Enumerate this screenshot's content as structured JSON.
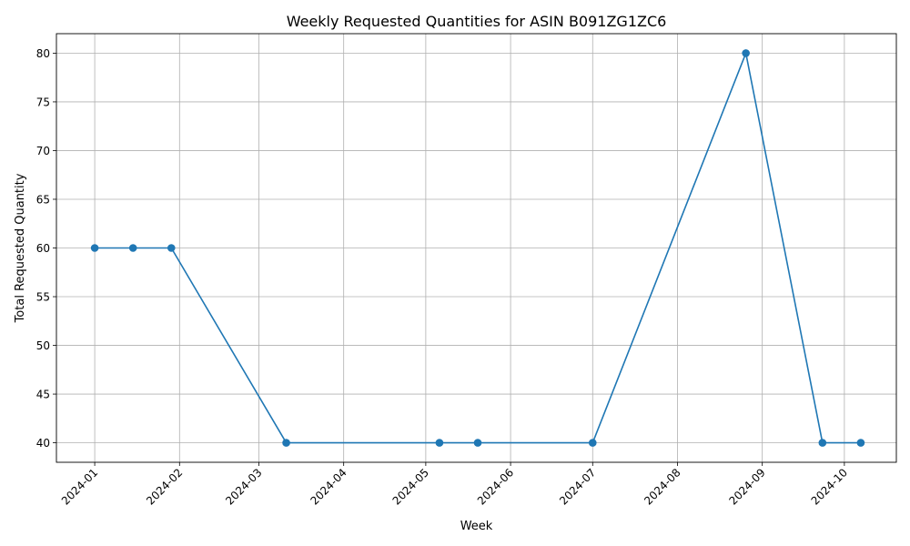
{
  "chart_data": {
    "type": "line",
    "title": "Weekly Requested Quantities for ASIN B091ZG1ZC6",
    "xlabel": "Week",
    "ylabel": "Total Requested Quantity",
    "x_ticks": [
      "2024-01",
      "2024-02",
      "2024-03",
      "2024-04",
      "2024-05",
      "2024-06",
      "2024-07",
      "2024-08",
      "2024-09",
      "2024-10"
    ],
    "y_ticks": [
      40,
      45,
      50,
      55,
      60,
      65,
      70,
      75,
      80
    ],
    "xlim": [
      "2023-12-18",
      "2024-10-20"
    ],
    "ylim": [
      38,
      82
    ],
    "grid": true,
    "series": [
      {
        "color": "#1f77b4",
        "marker": "circle",
        "points": [
          {
            "x": "2024-01-01",
            "y": 60
          },
          {
            "x": "2024-01-15",
            "y": 60
          },
          {
            "x": "2024-01-29",
            "y": 60
          },
          {
            "x": "2024-03-11",
            "y": 40
          },
          {
            "x": "2024-05-06",
            "y": 40
          },
          {
            "x": "2024-05-20",
            "y": 40
          },
          {
            "x": "2024-07-01",
            "y": 40
          },
          {
            "x": "2024-08-26",
            "y": 80
          },
          {
            "x": "2024-09-23",
            "y": 40
          },
          {
            "x": "2024-10-07",
            "y": 40
          }
        ]
      }
    ]
  }
}
